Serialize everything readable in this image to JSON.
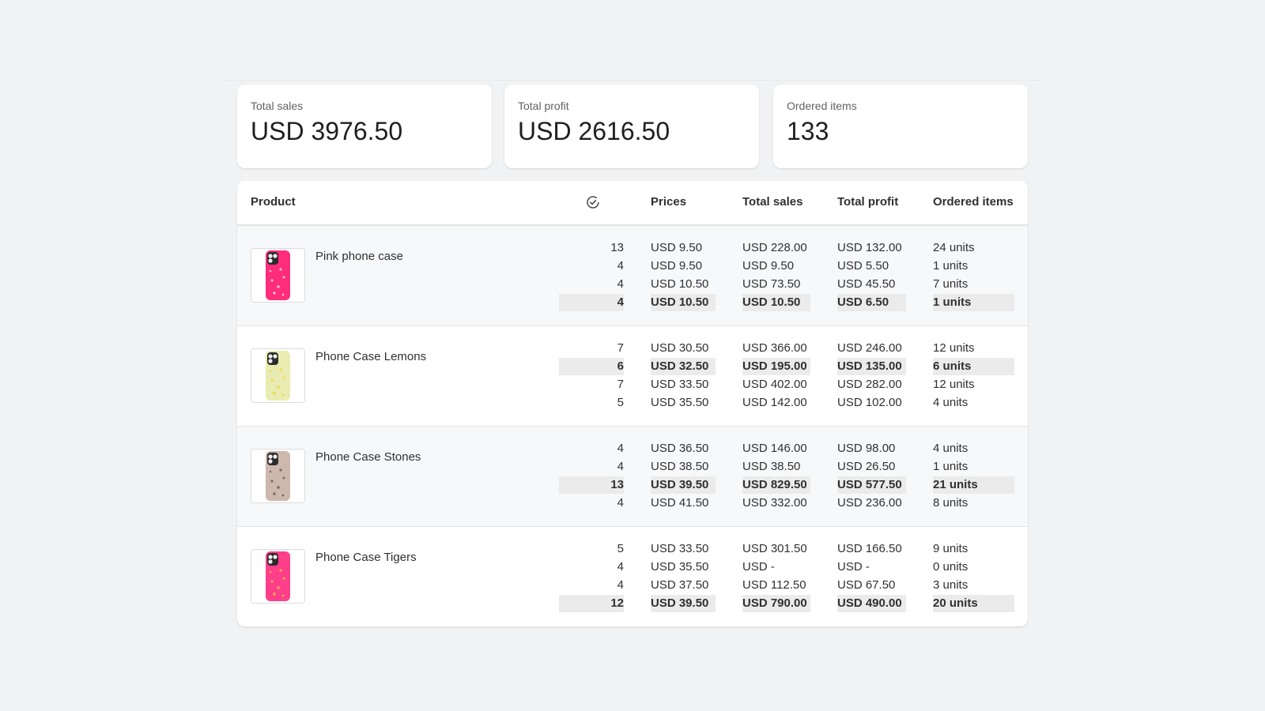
{
  "cards": [
    {
      "label": "Total sales",
      "value": "USD 3976.50"
    },
    {
      "label": "Total profit",
      "value": "USD 2616.50"
    },
    {
      "label": "Ordered items",
      "value": "133"
    }
  ],
  "table": {
    "columns": [
      "Product",
      "Prices",
      "Total sales",
      "Total profit",
      "Ordered items"
    ],
    "products": [
      {
        "name": "Pink phone case",
        "rows": [
          {
            "count": 13,
            "price": "USD 9.50",
            "sales": "USD 228.00",
            "profit": "USD 132.00",
            "units": "24 units",
            "highlight": false
          },
          {
            "count": 4,
            "price": "USD 9.50",
            "sales": "USD 9.50",
            "profit": "USD 5.50",
            "units": "1 units",
            "highlight": false
          },
          {
            "count": 4,
            "price": "USD 10.50",
            "sales": "USD 73.50",
            "profit": "USD 45.50",
            "units": "7 units",
            "highlight": false
          },
          {
            "count": 4,
            "price": "USD 10.50",
            "sales": "USD 10.50",
            "profit": "USD 6.50",
            "units": "1 units",
            "highlight": true
          }
        ]
      },
      {
        "name": "Phone Case Lemons",
        "rows": [
          {
            "count": 7,
            "price": "USD 30.50",
            "sales": "USD 366.00",
            "profit": "USD 246.00",
            "units": "12 units",
            "highlight": false
          },
          {
            "count": 6,
            "price": "USD 32.50",
            "sales": "USD 195.00",
            "profit": "USD 135.00",
            "units": "6 units",
            "highlight": true
          },
          {
            "count": 7,
            "price": "USD 33.50",
            "sales": "USD 402.00",
            "profit": "USD 282.00",
            "units": "12 units",
            "highlight": false
          },
          {
            "count": 5,
            "price": "USD 35.50",
            "sales": "USD 142.00",
            "profit": "USD 102.00",
            "units": "4 units",
            "highlight": false
          }
        ]
      },
      {
        "name": "Phone Case Stones",
        "rows": [
          {
            "count": 4,
            "price": "USD 36.50",
            "sales": "USD 146.00",
            "profit": "USD 98.00",
            "units": "4 units",
            "highlight": false
          },
          {
            "count": 4,
            "price": "USD 38.50",
            "sales": "USD 38.50",
            "profit": "USD 26.50",
            "units": "1 units",
            "highlight": false
          },
          {
            "count": 13,
            "price": "USD 39.50",
            "sales": "USD 829.50",
            "profit": "USD 577.50",
            "units": "21 units",
            "highlight": true
          },
          {
            "count": 4,
            "price": "USD 41.50",
            "sales": "USD 332.00",
            "profit": "USD 236.00",
            "units": "8 units",
            "highlight": false
          }
        ]
      },
      {
        "name": "Phone Case Tigers",
        "rows": [
          {
            "count": 5,
            "price": "USD 33.50",
            "sales": "USD 301.50",
            "profit": "USD 166.50",
            "units": "9 units",
            "highlight": false
          },
          {
            "count": 4,
            "price": "USD 35.50",
            "sales": "USD -",
            "profit": "USD -",
            "units": "0 units",
            "highlight": false
          },
          {
            "count": 4,
            "price": "USD 37.50",
            "sales": "USD 112.50",
            "profit": "USD 67.50",
            "units": "3 units",
            "highlight": false
          },
          {
            "count": 12,
            "price": "USD 39.50",
            "sales": "USD 790.00",
            "profit": "USD 490.00",
            "units": "20 units",
            "highlight": true
          }
        ]
      }
    ]
  }
}
